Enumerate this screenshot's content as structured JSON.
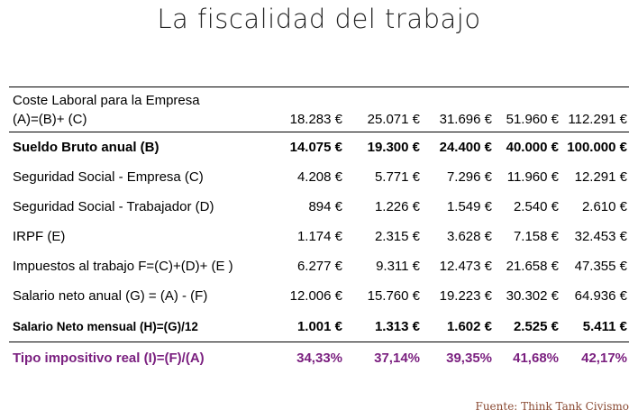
{
  "title": "La fiscalidad del trabajo",
  "table": {
    "rows": [
      {
        "label_line1": "Coste Laboral para la Empresa",
        "label_line2": "(A)=(B)+ (C)",
        "values": [
          "18.283 €",
          "25.071 €",
          "31.696 €",
          "51.960 €",
          "112.291 €"
        ]
      },
      {
        "label": "Sueldo Bruto anual (B)",
        "values": [
          "14.075 €",
          "19.300 €",
          "24.400 €",
          "40.000 €",
          "100.000 €"
        ]
      },
      {
        "label": "Seguridad Social - Empresa (C)",
        "values": [
          "4.208 €",
          "5.771 €",
          "7.296 €",
          "11.960 €",
          "12.291 €"
        ]
      },
      {
        "label": "Seguridad Social - Trabajador (D)",
        "values": [
          "894 €",
          "1.226 €",
          "1.549 €",
          "2.540 €",
          "2.610 €"
        ]
      },
      {
        "label": "IRPF (E)",
        "values": [
          "1.174 €",
          "2.315 €",
          "3.628 €",
          "7.158 €",
          "32.453 €"
        ]
      },
      {
        "label": "Impuestos al trabajo F=(C)+(D)+ (E )",
        "values": [
          "6.277 €",
          "9.311 €",
          "12.473 €",
          "21.658 €",
          "47.355 €"
        ]
      },
      {
        "label": "Salario neto anual (G) = (A) - (F)",
        "values": [
          "12.006 €",
          "15.760 €",
          "19.223 €",
          "30.302 €",
          "64.936 €"
        ]
      },
      {
        "label": "Salario Neto mensual (H)=(G)/12",
        "values": [
          "1.001 €",
          "1.313 €",
          "1.602 €",
          "2.525 €",
          "5.411 €"
        ]
      },
      {
        "label": "Tipo impositivo real (I)=(F)/(A)",
        "values": [
          "34,33%",
          "37,14%",
          "39,35%",
          "41,68%",
          "42,17%"
        ]
      }
    ]
  },
  "source": "Fuente: Think Tank Civismo",
  "colors": {
    "accent_purple": "#7a1f7f",
    "source_brown": "#8a4a33"
  }
}
